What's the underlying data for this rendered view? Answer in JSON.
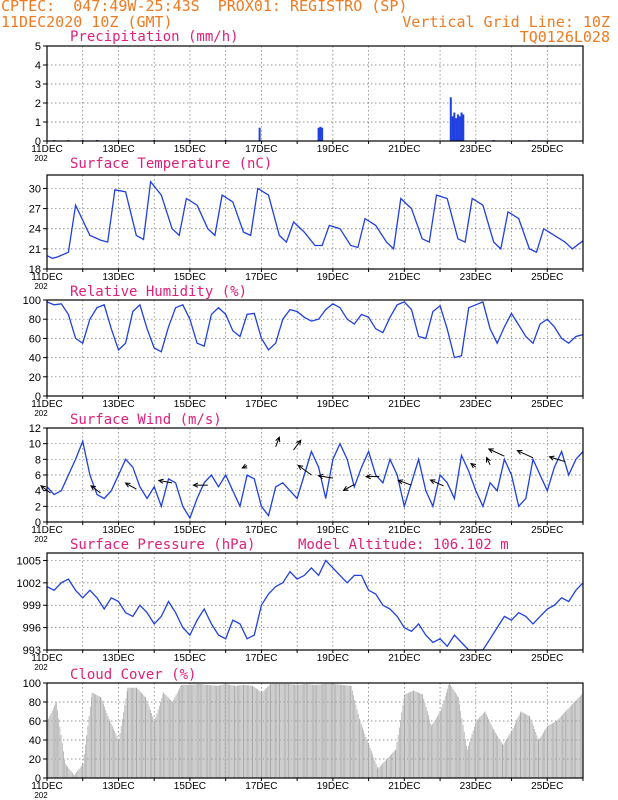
{
  "header": {
    "line1": "CPTEC:  047:49W-25:43S  PROX01: REGISTRO (SP)",
    "line2_left": "11DEC2020 10Z (GMT)",
    "line2_right": "Vertical Grid Line: 10Z",
    "line3_right": "TQ0126L028"
  },
  "colors": {
    "header": "#f07a20",
    "title": "#e0207a",
    "series": "#2040e0",
    "cloud": "#a8a8a8",
    "grid": "#707070"
  },
  "x_tick_labels": [
    "11DEC",
    "13DEC",
    "15DEC",
    "17DEC",
    "19DEC",
    "21DEC",
    "23DEC",
    "25DEC"
  ],
  "year_fragment": "202",
  "chart_data": [
    {
      "type": "bar",
      "title": "Precipitation (mm/h)",
      "ylim": [
        0,
        5
      ],
      "yticks": [
        0,
        1,
        2,
        3,
        4,
        5
      ],
      "x_unit": "days since 11DEC2020 00Z",
      "series": [
        {
          "x": [
            0.2,
            0.6,
            1.0,
            1.4,
            2.0,
            3.0,
            4.0,
            5.0,
            5.95,
            7.6,
            7.65,
            7.7,
            11.3,
            11.35,
            11.4,
            11.45,
            11.5,
            11.55,
            11.6,
            11.65,
            12.5,
            13.5
          ],
          "values": [
            0.05,
            0.05,
            0.05,
            0.05,
            0.05,
            0.05,
            0.05,
            0.05,
            0.7,
            0.7,
            0.75,
            0.7,
            2.3,
            1.3,
            1.5,
            1.2,
            1.4,
            1.3,
            1.5,
            1.4,
            0.05,
            0.05
          ]
        }
      ]
    },
    {
      "type": "line",
      "title": "Surface Temperature (nC)",
      "ylim": [
        18,
        32
      ],
      "yticks": [
        18,
        21,
        24,
        27,
        30
      ],
      "series": [
        {
          "x": [
            0,
            0.15,
            0.3,
            0.6,
            0.8,
            1.2,
            1.5,
            1.7,
            1.9,
            2.2,
            2.5,
            2.7,
            2.9,
            3.2,
            3.5,
            3.7,
            3.9,
            4.2,
            4.5,
            4.7,
            4.9,
            5.2,
            5.5,
            5.7,
            5.9,
            6.2,
            6.5,
            6.7,
            6.9,
            7.2,
            7.5,
            7.7,
            7.9,
            8.2,
            8.5,
            8.7,
            8.9,
            9.2,
            9.5,
            9.7,
            9.9,
            10.2,
            10.5,
            10.7,
            10.9,
            11.2,
            11.5,
            11.7,
            11.9,
            12.2,
            12.5,
            12.7,
            12.9,
            13.2,
            13.5,
            13.7,
            13.9,
            14.2,
            14.5,
            14.7,
            15.0
          ],
          "values": [
            20,
            19.6,
            19.8,
            20.5,
            27.5,
            23,
            22.3,
            22,
            29.8,
            29.5,
            23,
            22.4,
            31,
            29,
            24,
            23,
            28.5,
            27.5,
            24,
            23,
            29,
            28,
            23.5,
            23,
            30,
            29,
            23,
            22,
            25,
            23.5,
            21.5,
            21.5,
            24.5,
            24,
            21.5,
            21.2,
            25.5,
            24.5,
            22,
            21,
            28.5,
            27,
            22.5,
            22,
            29,
            28.5,
            22.5,
            22,
            28.5,
            27.5,
            22,
            21,
            26.5,
            25.5,
            21,
            20.5,
            24,
            23,
            22,
            21,
            22.2
          ]
        }
      ]
    },
    {
      "type": "line",
      "title": "Relative Humidity (%)",
      "ylim": [
        0,
        100
      ],
      "yticks": [
        0,
        20,
        40,
        60,
        80,
        100
      ],
      "series": [
        {
          "x": [
            0,
            0.2,
            0.4,
            0.6,
            0.8,
            1.0,
            1.2,
            1.4,
            1.6,
            1.8,
            2.0,
            2.2,
            2.4,
            2.6,
            2.8,
            3.0,
            3.2,
            3.4,
            3.6,
            3.8,
            4.0,
            4.2,
            4.4,
            4.6,
            4.8,
            5.0,
            5.2,
            5.4,
            5.6,
            5.8,
            6.0,
            6.2,
            6.4,
            6.6,
            6.8,
            7.0,
            7.2,
            7.4,
            7.6,
            7.8,
            8.0,
            8.2,
            8.4,
            8.6,
            8.8,
            9.0,
            9.2,
            9.4,
            9.6,
            9.8,
            10.0,
            10.2,
            10.4,
            10.6,
            10.8,
            11.0,
            11.2,
            11.4,
            11.6,
            11.8,
            12.0,
            12.2,
            12.4,
            12.6,
            12.8,
            13.0,
            13.2,
            13.4,
            13.6,
            13.8,
            14.0,
            14.2,
            14.4,
            14.6,
            14.8,
            15.0
          ],
          "values": [
            98,
            95,
            96,
            85,
            60,
            55,
            80,
            92,
            95,
            70,
            48,
            55,
            88,
            95,
            70,
            50,
            46,
            72,
            92,
            95,
            80,
            55,
            52,
            85,
            92,
            85,
            68,
            62,
            85,
            86,
            60,
            48,
            55,
            80,
            90,
            88,
            82,
            78,
            80,
            90,
            96,
            92,
            80,
            75,
            85,
            82,
            70,
            66,
            82,
            95,
            98,
            90,
            62,
            60,
            88,
            94,
            70,
            40,
            42,
            92,
            95,
            98,
            70,
            55,
            72,
            86,
            74,
            62,
            55,
            75,
            80,
            72,
            60,
            55,
            62,
            64
          ]
        }
      ]
    },
    {
      "type": "line",
      "title": "Surface Wind (m/s)",
      "ylim": [
        0,
        12
      ],
      "yticks": [
        0,
        2,
        4,
        6,
        8,
        10,
        12
      ],
      "series": [
        {
          "x": [
            0,
            0.2,
            0.4,
            0.6,
            0.8,
            1.0,
            1.2,
            1.4,
            1.6,
            1.8,
            2.0,
            2.2,
            2.4,
            2.6,
            2.8,
            3.0,
            3.2,
            3.4,
            3.6,
            3.8,
            4.0,
            4.2,
            4.4,
            4.6,
            4.8,
            5.0,
            5.2,
            5.4,
            5.6,
            5.8,
            6.0,
            6.2,
            6.4,
            6.6,
            6.8,
            7.0,
            7.2,
            7.4,
            7.6,
            7.8,
            8.0,
            8.2,
            8.4,
            8.6,
            8.8,
            9.0,
            9.2,
            9.4,
            9.6,
            9.8,
            10.0,
            10.2,
            10.4,
            10.6,
            10.8,
            11.0,
            11.2,
            11.4,
            11.6,
            11.8,
            12.0,
            12.2,
            12.4,
            12.6,
            12.8,
            13.0,
            13.2,
            13.4,
            13.6,
            13.8,
            14.0,
            14.2,
            14.4,
            14.6,
            14.8,
            15.0
          ],
          "values": [
            4.5,
            3.5,
            4,
            6,
            8,
            10.3,
            6,
            3.5,
            3,
            4,
            6,
            8,
            7,
            4.5,
            3,
            4.5,
            2,
            5.5,
            5,
            2,
            0.5,
            3,
            5,
            6,
            4.5,
            6,
            4,
            2,
            6,
            5.5,
            2,
            0.8,
            4.5,
            5,
            4,
            3,
            6,
            9,
            7,
            3,
            8,
            10,
            8,
            4.5,
            7,
            9,
            6,
            5,
            8,
            6,
            2,
            5,
            8,
            4,
            2,
            6,
            5,
            3,
            8.5,
            6.5,
            4,
            2,
            5,
            4,
            8,
            6,
            2,
            3,
            8,
            6,
            4,
            7,
            9,
            6,
            8,
            9
          ]
        }
      ],
      "vectors": [
        {
          "x": 0.1,
          "speed": 3.7,
          "u": 1.6,
          "v": 1.2
        },
        {
          "x": 1.5,
          "speed": 3.7,
          "u": 1.6,
          "v": 1.2
        },
        {
          "x": 2.5,
          "speed": 4.2,
          "u": 1.8,
          "v": 1.0
        },
        {
          "x": 3.5,
          "speed": 5.0,
          "u": 2.2,
          "v": 0.4
        },
        {
          "x": 4.5,
          "speed": 4.7,
          "u": 2.4,
          "v": 0.0
        },
        {
          "x": 5.6,
          "speed": 7.2,
          "u": 0.8,
          "v": -0.4
        },
        {
          "x": 6.4,
          "speed": 9.6,
          "u": -0.6,
          "v": 1.6
        },
        {
          "x": 6.9,
          "speed": 9.2,
          "u": -1.2,
          "v": 1.6
        },
        {
          "x": 7.4,
          "speed": 6.0,
          "u": 2.2,
          "v": 1.6
        },
        {
          "x": 8.0,
          "speed": 5.6,
          "u": 2.4,
          "v": 0.4
        },
        {
          "x": 8.6,
          "speed": 4.8,
          "u": 1.8,
          "v": -1.0
        },
        {
          "x": 9.3,
          "speed": 5.8,
          "u": 2.2,
          "v": 0.0
        },
        {
          "x": 10.2,
          "speed": 4.7,
          "u": 2.2,
          "v": 0.8
        },
        {
          "x": 11.1,
          "speed": 4.6,
          "u": 2.2,
          "v": 1.0
        },
        {
          "x": 12.0,
          "speed": 7.0,
          "u": 0.8,
          "v": 0.6
        },
        {
          "x": 12.4,
          "speed": 7.3,
          "u": 0.6,
          "v": 1.2
        },
        {
          "x": 12.8,
          "speed": 8.4,
          "u": 2.6,
          "v": 1.2
        },
        {
          "x": 13.6,
          "speed": 8.2,
          "u": 2.6,
          "v": 1.2
        },
        {
          "x": 14.5,
          "speed": 7.7,
          "u": 2.6,
          "v": 0.8
        }
      ]
    },
    {
      "type": "line",
      "title": "Surface Pressure (hPa)",
      "annotation": "Model Altitude: 106.102 m",
      "ylim": [
        993,
        1006
      ],
      "yticks": [
        993,
        996,
        999,
        1002,
        1005
      ],
      "series": [
        {
          "x": [
            0,
            0.2,
            0.4,
            0.6,
            0.8,
            1.0,
            1.2,
            1.4,
            1.6,
            1.8,
            2.0,
            2.2,
            2.4,
            2.6,
            2.8,
            3.0,
            3.2,
            3.4,
            3.6,
            3.8,
            4.0,
            4.2,
            4.4,
            4.6,
            4.8,
            5.0,
            5.2,
            5.4,
            5.6,
            5.8,
            6.0,
            6.2,
            6.4,
            6.6,
            6.8,
            7.0,
            7.2,
            7.4,
            7.6,
            7.8,
            8.0,
            8.2,
            8.4,
            8.6,
            8.8,
            9.0,
            9.2,
            9.4,
            9.6,
            9.8,
            10.0,
            10.2,
            10.4,
            10.6,
            10.8,
            11.0,
            11.2,
            11.4,
            11.6,
            11.8,
            12.0,
            12.2,
            12.4,
            12.6,
            12.8,
            13.0,
            13.2,
            13.4,
            13.6,
            13.8,
            14.0,
            14.2,
            14.4,
            14.6,
            14.8,
            15.0
          ],
          "values": [
            1001.5,
            1001,
            1002,
            1002.5,
            1001,
            1000,
            1001,
            1000,
            998.5,
            1000,
            999.5,
            998,
            997.5,
            999,
            998,
            996.5,
            997.5,
            999.5,
            998,
            996,
            995,
            997,
            998.5,
            996.5,
            995,
            994.5,
            997,
            996.5,
            994.5,
            995,
            999,
            1000.5,
            1001.5,
            1002,
            1003.5,
            1002.5,
            1003,
            1004,
            1003,
            1005,
            1004,
            1003,
            1002,
            1003,
            1003,
            1001,
            1000.5,
            999,
            998.5,
            997.5,
            996,
            995.5,
            996.5,
            995,
            994,
            994.5,
            993.5,
            995,
            994,
            993,
            993,
            993,
            994.5,
            996,
            997.5,
            997,
            998,
            997.5,
            996.5,
            997.5,
            998.5,
            999,
            1000,
            999.5,
            1001,
            1002
          ]
        }
      ]
    },
    {
      "type": "area",
      "title": "Cloud Cover (%)",
      "ylim": [
        0,
        100
      ],
      "yticks": [
        0,
        20,
        40,
        60,
        80,
        100
      ],
      "series": [
        {
          "x": [
            0,
            0.25,
            0.5,
            0.75,
            1.0,
            1.25,
            1.5,
            1.75,
            2.0,
            2.25,
            2.5,
            2.75,
            3.0,
            3.25,
            3.5,
            3.75,
            4.0,
            4.25,
            4.5,
            4.75,
            5.0,
            5.25,
            5.5,
            5.75,
            6.0,
            6.25,
            6.5,
            6.75,
            7.0,
            7.25,
            7.5,
            7.75,
            8.0,
            8.25,
            8.5,
            8.75,
            9.0,
            9.25,
            9.5,
            9.75,
            10.0,
            10.25,
            10.5,
            10.75,
            11.0,
            11.25,
            11.5,
            11.75,
            12.0,
            12.25,
            12.5,
            12.75,
            13.0,
            13.25,
            13.5,
            13.75,
            14.0,
            14.25,
            14.5,
            14.75,
            15.0
          ],
          "values": [
            60,
            80,
            15,
            3,
            15,
            90,
            85,
            60,
            40,
            95,
            95,
            85,
            60,
            90,
            80,
            98,
            98,
            99,
            98,
            97,
            99,
            97,
            98,
            97,
            90,
            99,
            99,
            99,
            98,
            99,
            98,
            99,
            99,
            98,
            97,
            60,
            35,
            10,
            20,
            30,
            88,
            92,
            88,
            55,
            70,
            100,
            85,
            30,
            60,
            70,
            50,
            35,
            50,
            70,
            65,
            40,
            55,
            60,
            70,
            80,
            90
          ]
        }
      ]
    }
  ]
}
